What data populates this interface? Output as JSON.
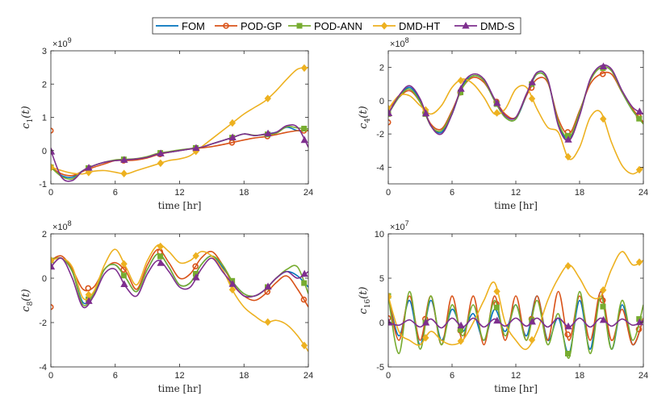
{
  "chart_data": [
    {
      "type": "line",
      "ylabel": "c_1(t)",
      "ylabel_main": "c",
      "ylabel_sub": "1",
      "ylabel_tail": "(t)",
      "xlabel": "time [hr]",
      "exponent_base": "×10",
      "exponent_power": "9",
      "xlim": [
        0,
        24
      ],
      "ylim": [
        -1,
        3
      ],
      "xticks": [
        0,
        6,
        12,
        18,
        24
      ],
      "yticks": [
        -1,
        0,
        1,
        2,
        3
      ],
      "x": [
        0,
        1,
        2,
        3,
        4,
        5,
        6,
        7,
        8,
        9,
        10,
        11,
        12,
        13,
        14,
        15,
        16,
        17,
        18,
        19,
        20,
        21,
        22,
        23,
        24
      ],
      "series": [
        {
          "name": "FOM",
          "values": [
            -0.5,
            -0.75,
            -0.8,
            -0.6,
            -0.45,
            -0.35,
            -0.3,
            -0.28,
            -0.25,
            -0.2,
            -0.1,
            -0.05,
            0.0,
            0.05,
            0.1,
            0.2,
            0.3,
            0.4,
            0.5,
            0.45,
            0.5,
            0.55,
            0.7,
            0.6,
            0.6
          ]
        },
        {
          "name": "POD-GP",
          "values": [
            -0.5,
            -0.7,
            -0.75,
            -0.62,
            -0.5,
            -0.4,
            -0.3,
            -0.3,
            -0.28,
            -0.22,
            -0.12,
            -0.05,
            0.0,
            0.05,
            0.08,
            0.12,
            0.18,
            0.25,
            0.32,
            0.38,
            0.42,
            0.48,
            0.55,
            0.6,
            0.6
          ]
        },
        {
          "name": "POD-ANN",
          "values": [
            -0.5,
            -0.78,
            -0.85,
            -0.6,
            -0.45,
            -0.35,
            -0.28,
            -0.26,
            -0.24,
            -0.18,
            -0.08,
            -0.03,
            0.02,
            0.06,
            0.1,
            0.2,
            0.3,
            0.4,
            0.5,
            0.46,
            0.48,
            0.52,
            0.72,
            0.68,
            0.65
          ]
        },
        {
          "name": "DMD-HT",
          "values": [
            -0.5,
            -0.6,
            -0.68,
            -0.7,
            -0.62,
            -0.6,
            -0.65,
            -0.7,
            -0.6,
            -0.5,
            -0.4,
            -0.3,
            -0.25,
            -0.15,
            0.1,
            0.35,
            0.6,
            0.85,
            1.1,
            1.3,
            1.5,
            1.8,
            2.15,
            2.45,
            2.5
          ]
        },
        {
          "name": "DMD-S",
          "values": [
            0.0,
            -0.8,
            -0.9,
            -0.6,
            -0.45,
            -0.35,
            -0.3,
            -0.28,
            -0.25,
            -0.2,
            -0.1,
            -0.05,
            0.0,
            0.05,
            0.1,
            0.2,
            0.3,
            0.4,
            0.5,
            0.45,
            0.5,
            0.55,
            0.75,
            0.7,
            0.1
          ]
        }
      ]
    },
    {
      "type": "line",
      "ylabel": "c_4(t)",
      "ylabel_main": "c",
      "ylabel_sub": "4",
      "ylabel_tail": "(t)",
      "xlabel": "time [hr]",
      "exponent_base": "×10",
      "exponent_power": "8",
      "xlim": [
        0,
        24
      ],
      "ylim": [
        -5,
        3
      ],
      "xticks": [
        0,
        6,
        12,
        18,
        24
      ],
      "yticks": [
        -4,
        -2,
        0,
        2
      ],
      "x": [
        0,
        1,
        2,
        3,
        4,
        5,
        6,
        7,
        8,
        9,
        10,
        11,
        12,
        13,
        14,
        15,
        16,
        17,
        18,
        19,
        20,
        21,
        22,
        23,
        24
      ],
      "series": [
        {
          "name": "FOM",
          "values": [
            -0.8,
            0.2,
            0.8,
            0.0,
            -1.5,
            -1.9,
            -0.8,
            0.9,
            1.5,
            1.2,
            0.0,
            -1.0,
            -1.1,
            0.3,
            1.6,
            1.2,
            -1.4,
            -2.3,
            -0.8,
            1.2,
            2.0,
            1.8,
            0.5,
            -0.6,
            -1.3
          ]
        },
        {
          "name": "POD-GP",
          "values": [
            -0.5,
            0.2,
            0.6,
            -0.1,
            -1.4,
            -1.7,
            -0.6,
            0.8,
            1.4,
            1.1,
            0.1,
            -0.8,
            -1.0,
            0.3,
            1.3,
            1.1,
            -1.1,
            -2.0,
            -0.6,
            1.0,
            1.6,
            1.6,
            0.5,
            -0.5,
            -1.3
          ]
        },
        {
          "name": "POD-ANN",
          "values": [
            -0.8,
            0.2,
            0.7,
            -0.1,
            -1.5,
            -1.8,
            -0.7,
            0.8,
            1.5,
            1.2,
            0.0,
            -1.0,
            -1.1,
            0.4,
            1.6,
            1.2,
            -1.3,
            -2.2,
            -0.7,
            1.2,
            2.0,
            1.8,
            0.5,
            -0.6,
            -1.4
          ]
        },
        {
          "name": "DMD-HT",
          "values": [
            -0.5,
            0.3,
            0.3,
            -0.3,
            -0.8,
            -0.3,
            0.8,
            1.3,
            1.0,
            0.2,
            -0.8,
            -0.5,
            0.7,
            0.8,
            -0.5,
            -1.6,
            -1.9,
            -3.5,
            -2.8,
            -1.0,
            -0.7,
            -2.5,
            -3.9,
            -4.4,
            -4.0
          ]
        },
        {
          "name": "DMD-S",
          "values": [
            -0.8,
            0.3,
            0.9,
            0.1,
            -1.5,
            -2.0,
            -0.8,
            1.0,
            1.6,
            1.3,
            0.1,
            -0.9,
            -1.0,
            0.4,
            1.7,
            1.3,
            -1.5,
            -2.4,
            -0.9,
            1.3,
            2.1,
            1.9,
            0.6,
            -0.4,
            -0.8
          ]
        }
      ]
    },
    {
      "type": "line",
      "ylabel": "c_8(t)",
      "ylabel_main": "c",
      "ylabel_sub": "8",
      "ylabel_tail": "(t)",
      "xlabel": "time [hr]",
      "exponent_base": "×10",
      "exponent_power": "8",
      "xlim": [
        0,
        24
      ],
      "ylim": [
        -4,
        2
      ],
      "xticks": [
        0,
        6,
        12,
        18,
        24
      ],
      "yticks": [
        -4,
        -2,
        0,
        2
      ],
      "x": [
        0,
        1,
        2,
        3,
        4,
        5,
        6,
        7,
        8,
        9,
        10,
        11,
        12,
        13,
        14,
        15,
        16,
        17,
        18,
        19,
        20,
        21,
        22,
        23,
        24
      ],
      "series": [
        {
          "name": "FOM",
          "values": [
            0.8,
            0.9,
            0.3,
            -1.1,
            -0.7,
            0.4,
            0.6,
            0.0,
            -0.6,
            0.4,
            1.1,
            0.5,
            -0.3,
            -0.2,
            0.6,
            1.0,
            0.5,
            -0.2,
            -0.7,
            -0.8,
            -0.5,
            0.0,
            0.3,
            0.1,
            -0.4
          ]
        },
        {
          "name": "POD-GP",
          "values": [
            0.8,
            1.0,
            0.4,
            -0.5,
            -0.4,
            0.4,
            0.7,
            0.3,
            -0.5,
            0.6,
            1.3,
            0.7,
            0.0,
            0.2,
            0.9,
            1.2,
            0.6,
            -0.3,
            -0.8,
            -1.0,
            -0.7,
            -0.2,
            0.1,
            -0.5,
            -1.3
          ]
        },
        {
          "name": "POD-ANN",
          "values": [
            0.8,
            0.9,
            0.3,
            -1.2,
            -0.7,
            0.4,
            0.6,
            0.0,
            -0.6,
            0.4,
            1.1,
            0.5,
            -0.3,
            -0.2,
            0.6,
            1.0,
            0.6,
            -0.2,
            -0.7,
            -0.8,
            -0.5,
            0.0,
            0.4,
            0.5,
            -0.7
          ]
        },
        {
          "name": "DMD-HT",
          "values": [
            0.8,
            0.9,
            0.5,
            -0.9,
            -0.6,
            0.6,
            1.3,
            0.5,
            -0.3,
            0.8,
            1.5,
            1.2,
            0.7,
            0.8,
            1.2,
            1.0,
            0.4,
            -0.6,
            -1.3,
            -1.7,
            -2.0,
            -1.9,
            -2.1,
            -2.6,
            -3.3
          ]
        },
        {
          "name": "DMD-S",
          "values": [
            0.5,
            0.9,
            0.0,
            -1.3,
            -0.8,
            0.2,
            0.4,
            -0.4,
            -0.8,
            0.2,
            0.8,
            0.3,
            -0.4,
            -0.4,
            0.4,
            0.9,
            0.3,
            -0.3,
            -0.8,
            -0.8,
            -0.5,
            0.0,
            0.3,
            0.0,
            0.3
          ]
        }
      ]
    },
    {
      "type": "line",
      "ylabel": "c_16(t)",
      "ylabel_main": "c",
      "ylabel_sub": "16",
      "ylabel_tail": "(t)",
      "xlabel": "time [hr]",
      "exponent_base": "×10",
      "exponent_power": "7",
      "xlim": [
        0,
        24
      ],
      "ylim": [
        -5,
        10
      ],
      "xticks": [
        0,
        6,
        12,
        18,
        24
      ],
      "yticks": [
        -5,
        0,
        5,
        10
      ],
      "x": [
        0,
        1,
        2,
        3,
        4,
        5,
        6,
        7,
        8,
        9,
        10,
        11,
        12,
        13,
        14,
        15,
        16,
        17,
        18,
        19,
        20,
        21,
        22,
        23,
        24
      ],
      "series": [
        {
          "name": "FOM",
          "values": [
            3.0,
            -1.5,
            2.5,
            -2.5,
            2.5,
            -2.0,
            1.5,
            -1.0,
            1.0,
            -2.0,
            1.5,
            -1.0,
            2.0,
            -1.5,
            3.0,
            -2.0,
            0.5,
            -3.5,
            2.5,
            -3.0,
            3.5,
            -3.0,
            2.0,
            -2.5,
            0.5
          ]
        },
        {
          "name": "POD-GP",
          "values": [
            3.0,
            -2.0,
            3.0,
            -2.0,
            3.0,
            -2.5,
            3.0,
            -2.0,
            3.0,
            -2.5,
            3.0,
            -2.0,
            3.0,
            -2.0,
            3.0,
            -2.0,
            3.5,
            -2.0,
            3.0,
            -2.0,
            3.5,
            -2.0,
            1.5,
            -2.5,
            0.5
          ]
        },
        {
          "name": "POD-ANN",
          "values": [
            3.0,
            -3.5,
            3.5,
            -3.0,
            3.0,
            -2.5,
            2.0,
            -1.5,
            2.0,
            -2.0,
            2.5,
            -1.5,
            2.0,
            -2.0,
            2.5,
            -2.5,
            1.0,
            -4.0,
            3.5,
            -3.5,
            3.0,
            -3.0,
            2.5,
            -2.0,
            2.0
          ]
        },
        {
          "name": "DMD-HT",
          "values": [
            3.0,
            -1.0,
            -2.0,
            -2.5,
            -1.0,
            -2.0,
            -2.5,
            -2.0,
            0.0,
            2.5,
            4.5,
            0.0,
            -2.0,
            -3.0,
            -1.0,
            2.5,
            5.0,
            6.5,
            5.0,
            3.0,
            3.0,
            6.0,
            8.0,
            6.5,
            7.0
          ]
        },
        {
          "name": "DMD-S",
          "values": [
            0.0,
            -0.3,
            0.3,
            -0.5,
            0.4,
            -0.6,
            0.5,
            -0.5,
            0.5,
            -0.5,
            0.4,
            -0.4,
            0.5,
            -0.4,
            0.5,
            -0.5,
            0.5,
            -0.5,
            0.5,
            -0.5,
            0.5,
            -0.4,
            0.4,
            -0.3,
            0.2
          ]
        }
      ]
    }
  ],
  "legend": {
    "placement": "top-center",
    "entries": [
      {
        "name": "FOM",
        "color": "#0072BD",
        "marker": "none"
      },
      {
        "name": "POD-GP",
        "color": "#D95319",
        "marker": "circle"
      },
      {
        "name": "POD-ANN",
        "color": "#77AC30",
        "marker": "square"
      },
      {
        "name": "DMD-HT",
        "color": "#EDB120",
        "marker": "diamond"
      },
      {
        "name": "DMD-S",
        "color": "#7E2F8E",
        "marker": "triangle"
      }
    ]
  },
  "colors": {
    "FOM": "#0072BD",
    "POD-GP": "#D95319",
    "POD-ANN": "#77AC30",
    "DMD-HT": "#EDB120",
    "DMD-S": "#7E2F8E"
  }
}
